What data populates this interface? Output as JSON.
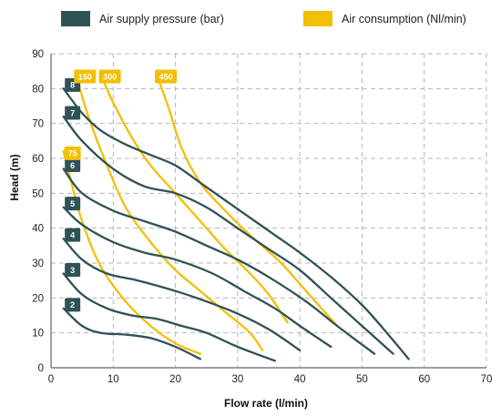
{
  "chart_data": {
    "type": "line",
    "xlabel": "Flow rate (l/min)",
    "ylabel": "Head (m)",
    "xlim": [
      0,
      70
    ],
    "ylim": [
      0,
      90
    ],
    "x_ticks": [
      0,
      10,
      20,
      30,
      40,
      50,
      60,
      70
    ],
    "y_ticks": [
      0,
      10,
      20,
      30,
      40,
      50,
      60,
      70,
      80,
      90
    ],
    "grid": true,
    "legend_position": "top",
    "legend": [
      {
        "label": "Air supply pressure (bar)",
        "color": "#2e5256"
      },
      {
        "label": "Air consumption (Nl/min)",
        "color": "#f2bf05"
      }
    ],
    "pressure_series": [
      {
        "name": "2",
        "color": "#2e5256",
        "points": [
          [
            2,
            17
          ],
          [
            5,
            12
          ],
          [
            8,
            10
          ],
          [
            12,
            9.5
          ],
          [
            16,
            8.5
          ],
          [
            20,
            6
          ],
          [
            24,
            2.5
          ]
        ]
      },
      {
        "name": "3",
        "color": "#2e5256",
        "points": [
          [
            2,
            27
          ],
          [
            5,
            21
          ],
          [
            9,
            17
          ],
          [
            13,
            15
          ],
          [
            17,
            14
          ],
          [
            21,
            12
          ],
          [
            25,
            10
          ],
          [
            30,
            6
          ],
          [
            36,
            2
          ]
        ]
      },
      {
        "name": "4",
        "color": "#2e5256",
        "points": [
          [
            2,
            37
          ],
          [
            5,
            31
          ],
          [
            9,
            27
          ],
          [
            14,
            25
          ],
          [
            20,
            22
          ],
          [
            25,
            19
          ],
          [
            30,
            15.5
          ],
          [
            35,
            11
          ],
          [
            40,
            5
          ]
        ]
      },
      {
        "name": "5",
        "color": "#2e5256",
        "points": [
          [
            2,
            46
          ],
          [
            5,
            41
          ],
          [
            10,
            36
          ],
          [
            15,
            33
          ],
          [
            20,
            31
          ],
          [
            26,
            27
          ],
          [
            31,
            22
          ],
          [
            36,
            17
          ],
          [
            40,
            12
          ],
          [
            45,
            6
          ]
        ]
      },
      {
        "name": "6",
        "color": "#2e5256",
        "points": [
          [
            2,
            57
          ],
          [
            5,
            50
          ],
          [
            10,
            45
          ],
          [
            15,
            42
          ],
          [
            20,
            39
          ],
          [
            25,
            35
          ],
          [
            30,
            31
          ],
          [
            35,
            26
          ],
          [
            41,
            19
          ],
          [
            46,
            12
          ],
          [
            52,
            4
          ]
        ]
      },
      {
        "name": "7",
        "color": "#2e5256",
        "points": [
          [
            2,
            72
          ],
          [
            5,
            65
          ],
          [
            10,
            57
          ],
          [
            15,
            52
          ],
          [
            20,
            50
          ],
          [
            25,
            46
          ],
          [
            30,
            40
          ],
          [
            35,
            34
          ],
          [
            40,
            28
          ],
          [
            45,
            20
          ],
          [
            50,
            12
          ],
          [
            55,
            4
          ]
        ]
      },
      {
        "name": "8",
        "color": "#2e5256",
        "points": [
          [
            2,
            80
          ],
          [
            5,
            73
          ],
          [
            8,
            68
          ],
          [
            12,
            64
          ],
          [
            16,
            61
          ],
          [
            20,
            58
          ],
          [
            24,
            53
          ],
          [
            28,
            48
          ],
          [
            32,
            43
          ],
          [
            36,
            38
          ],
          [
            40,
            33
          ],
          [
            45,
            26
          ],
          [
            50,
            18
          ],
          [
            54,
            10
          ],
          [
            57.5,
            2.5
          ]
        ]
      }
    ],
    "consumption_series": [
      {
        "name": "75",
        "color": "#f2bf05",
        "points": [
          [
            2,
            62
          ],
          [
            3,
            55
          ],
          [
            5,
            42
          ],
          [
            8,
            29
          ],
          [
            12,
            19
          ],
          [
            16,
            12
          ],
          [
            20,
            7
          ],
          [
            24,
            4
          ]
        ]
      },
      {
        "name": "150",
        "color": "#f2bf05",
        "points": [
          [
            4,
            84
          ],
          [
            6,
            72
          ],
          [
            9,
            58
          ],
          [
            12,
            46
          ],
          [
            16,
            36
          ],
          [
            20,
            28
          ],
          [
            24,
            22
          ],
          [
            28,
            16
          ],
          [
            32,
            10
          ],
          [
            34,
            5
          ]
        ]
      },
      {
        "name": "300",
        "color": "#f2bf05",
        "points": [
          [
            8,
            84
          ],
          [
            10,
            76
          ],
          [
            13,
            66
          ],
          [
            16,
            58
          ],
          [
            20,
            50
          ],
          [
            24,
            42
          ],
          [
            28,
            34
          ],
          [
            32,
            27
          ],
          [
            35,
            21
          ],
          [
            38,
            13
          ]
        ]
      },
      {
        "name": "450",
        "color": "#f2bf05",
        "points": [
          [
            17,
            84
          ],
          [
            19,
            74
          ],
          [
            21,
            63
          ],
          [
            24,
            53
          ],
          [
            28,
            45
          ],
          [
            32,
            38
          ],
          [
            37,
            30
          ],
          [
            41,
            22
          ],
          [
            46,
            12
          ]
        ]
      }
    ]
  }
}
